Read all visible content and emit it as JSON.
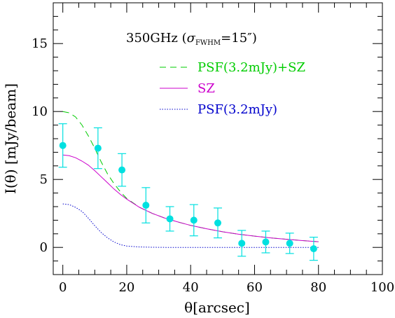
{
  "chart_data": {
    "type": "scatter",
    "title": "350GHz (σ_FWHM=15″)",
    "title_parts": {
      "main": "350GHz (",
      "sigma": "σ",
      "sub": "FWHM",
      "rest": "=15″)"
    },
    "xlabel": "θ[arcsec]",
    "ylabel": "I(θ) [mJy/beam]",
    "xlim": [
      -3,
      100
    ],
    "ylim": [
      -2,
      18
    ],
    "xticks": [
      0,
      20,
      40,
      60,
      80,
      100
    ],
    "yticks": [
      0,
      5,
      10,
      15
    ],
    "grid": false,
    "legend_position": "top-right",
    "series": [
      {
        "name": "PSF(3.2mJy)+SZ",
        "style": "dashed",
        "color": "#00cc00",
        "x": [
          0,
          2,
          4,
          6,
          8,
          10,
          12,
          14,
          16,
          18,
          20,
          24,
          28,
          32,
          36,
          40,
          45,
          50,
          55,
          60,
          65,
          70,
          75,
          80
        ],
        "y": [
          10.0,
          9.9,
          9.6,
          9.0,
          8.2,
          7.3,
          6.3,
          5.4,
          4.7,
          4.1,
          3.6,
          2.95,
          2.5,
          2.15,
          1.87,
          1.62,
          1.37,
          1.15,
          0.97,
          0.83,
          0.7,
          0.6,
          0.5,
          0.42
        ]
      },
      {
        "name": "SZ",
        "style": "solid",
        "color": "#cc00cc",
        "x": [
          0,
          2,
          4,
          6,
          8,
          10,
          12,
          14,
          16,
          18,
          20,
          24,
          28,
          32,
          36,
          40,
          45,
          50,
          55,
          60,
          65,
          70,
          75,
          80
        ],
        "y": [
          6.8,
          6.75,
          6.6,
          6.35,
          6.05,
          5.65,
          5.2,
          4.75,
          4.3,
          3.9,
          3.55,
          2.95,
          2.5,
          2.15,
          1.87,
          1.62,
          1.37,
          1.15,
          0.97,
          0.83,
          0.7,
          0.6,
          0.5,
          0.42
        ]
      },
      {
        "name": "PSF(3.2mJy)",
        "style": "dotted",
        "color": "#0000cc",
        "x": [
          0,
          2,
          4,
          6,
          8,
          10,
          12,
          14,
          16,
          18,
          20,
          24,
          28,
          32,
          36,
          40,
          45,
          50,
          55,
          60,
          65,
          70,
          75,
          80
        ],
        "y": [
          3.2,
          3.15,
          2.95,
          2.65,
          2.15,
          1.6,
          1.1,
          0.7,
          0.4,
          0.2,
          0.1,
          0.03,
          0.01,
          0,
          0,
          0,
          0,
          0,
          0,
          0,
          0,
          0,
          0,
          0
        ]
      }
    ],
    "points": {
      "color": "#00e0e0",
      "x": [
        0,
        11,
        18.5,
        26,
        33.5,
        41,
        48.5,
        56,
        63.5,
        71,
        78.5
      ],
      "y": [
        7.5,
        7.3,
        5.7,
        3.1,
        2.1,
        2.0,
        1.8,
        0.3,
        0.4,
        0.3,
        -0.1
      ],
      "err": [
        1.6,
        1.5,
        1.2,
        1.3,
        0.9,
        1.15,
        1.1,
        0.95,
        0.8,
        0.75,
        0.85
      ]
    }
  }
}
